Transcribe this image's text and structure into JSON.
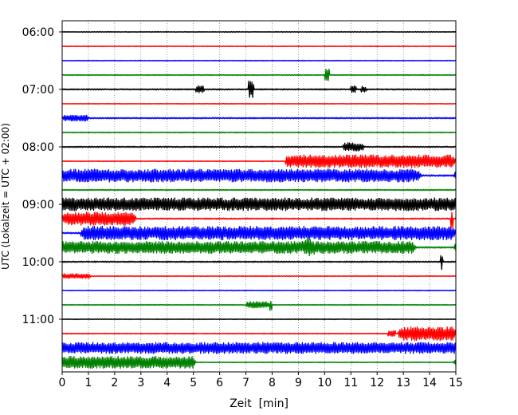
{
  "chart_data": {
    "type": "line",
    "title": "",
    "xlabel": "Zeit  [min]",
    "ylabel": "UTC (Lokalzeit = UTC + 02:00)",
    "xlim": [
      0,
      15
    ],
    "x_ticks": [
      0,
      1,
      2,
      3,
      4,
      5,
      6,
      7,
      8,
      9,
      10,
      11,
      12,
      13,
      14,
      15
    ],
    "y_tick_labels": [
      "06:00",
      "07:00",
      "08:00",
      "09:00",
      "10:00",
      "11:00"
    ],
    "grid": "vertical dotted",
    "row_minutes": 15,
    "trace_colors": [
      "#000000",
      "#ff0000",
      "#0000ff",
      "#008000"
    ],
    "rows": [
      {
        "start": "06:00",
        "base_amplitude": 0.05,
        "events": []
      },
      {
        "start": "06:15",
        "base_amplitude": 0.05,
        "events": []
      },
      {
        "start": "06:30",
        "base_amplitude": 0.05,
        "events": []
      },
      {
        "start": "06:45",
        "base_amplitude": 0.06,
        "events": [
          {
            "start_min": 10.0,
            "end_min": 10.2,
            "amplitude": 0.8
          }
        ]
      },
      {
        "start": "07:00",
        "base_amplitude": 0.08,
        "events": [
          {
            "start_min": 5.1,
            "end_min": 5.4,
            "amplitude": 0.35
          },
          {
            "start_min": 7.1,
            "end_min": 7.3,
            "amplitude": 1.0
          },
          {
            "start_min": 11.0,
            "end_min": 11.2,
            "amplitude": 0.4
          },
          {
            "start_min": 11.4,
            "end_min": 11.6,
            "amplitude": 0.3
          }
        ]
      },
      {
        "start": "07:15",
        "base_amplitude": 0.05,
        "events": []
      },
      {
        "start": "07:30",
        "base_amplitude": 0.08,
        "events": [
          {
            "start_min": 0.0,
            "end_min": 1.0,
            "amplitude": 0.3
          }
        ]
      },
      {
        "start": "07:45",
        "base_amplitude": 0.06,
        "events": []
      },
      {
        "start": "08:00",
        "base_amplitude": 0.08,
        "events": [
          {
            "start_min": 10.7,
            "end_min": 11.5,
            "amplitude": 0.45
          }
        ]
      },
      {
        "start": "08:15",
        "base_amplitude": 0.05,
        "events": [
          {
            "start_min": 8.5,
            "end_min": 15.0,
            "amplitude": 0.75
          }
        ]
      },
      {
        "start": "08:30",
        "base_amplitude": 0.8,
        "events": [
          {
            "start_min": 13.6,
            "end_min": 15.0,
            "amplitude": -0.7
          }
        ]
      },
      {
        "start": "08:45",
        "base_amplitude": 0.07,
        "events": []
      },
      {
        "start": "09:00",
        "base_amplitude": 0.8,
        "events": []
      },
      {
        "start": "09:15",
        "base_amplitude": 0.08,
        "events": [
          {
            "start_min": 0.0,
            "end_min": 2.8,
            "amplitude": 0.75
          },
          {
            "start_min": 14.8,
            "end_min": 14.9,
            "amplitude": 1.1
          }
        ]
      },
      {
        "start": "09:30",
        "base_amplitude": 0.1,
        "events": [
          {
            "start_min": 0.7,
            "end_min": 15.0,
            "amplitude": 0.75
          }
        ]
      },
      {
        "start": "09:45",
        "base_amplitude": 0.75,
        "events": [
          {
            "start_min": 13.4,
            "end_min": 15.0,
            "amplitude": -0.65
          },
          {
            "start_min": 9.2,
            "end_min": 9.6,
            "amplitude": 0.3
          }
        ]
      },
      {
        "start": "10:00",
        "base_amplitude": 0.08,
        "events": [
          {
            "start_min": 14.4,
            "end_min": 14.5,
            "amplitude": 0.9
          }
        ]
      },
      {
        "start": "10:15",
        "base_amplitude": 0.05,
        "events": [
          {
            "start_min": 0.0,
            "end_min": 1.1,
            "amplitude": 0.25
          }
        ]
      },
      {
        "start": "10:30",
        "base_amplitude": 0.05,
        "events": []
      },
      {
        "start": "10:45",
        "base_amplitude": 0.06,
        "events": [
          {
            "start_min": 7.0,
            "end_min": 7.9,
            "amplitude": 0.35
          },
          {
            "start_min": 7.9,
            "end_min": 8.0,
            "amplitude": 0.7
          }
        ]
      },
      {
        "start": "11:00",
        "base_amplitude": 0.05,
        "events": []
      },
      {
        "start": "11:15",
        "base_amplitude": 0.06,
        "events": [
          {
            "start_min": 12.4,
            "end_min": 12.7,
            "amplitude": 0.3
          },
          {
            "start_min": 12.8,
            "end_min": 15.0,
            "amplitude": 0.8
          }
        ]
      },
      {
        "start": "11:30",
        "base_amplitude": 0.7,
        "events": []
      },
      {
        "start": "11:45",
        "base_amplitude": 0.75,
        "events": [
          {
            "start_min": 5.0,
            "end_min": 15.0,
            "amplitude": -0.7
          }
        ]
      }
    ]
  }
}
